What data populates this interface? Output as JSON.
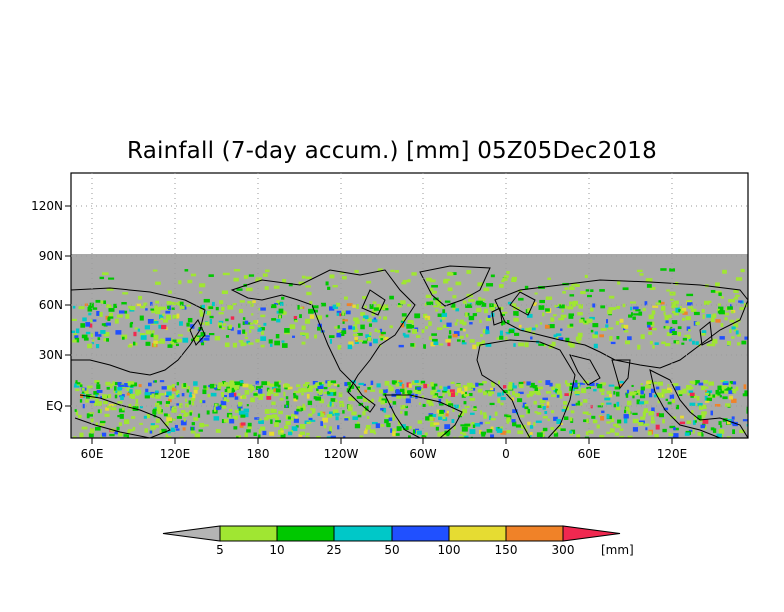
{
  "title": "Rainfall (7-day accum.) [mm] 05Z05Dec2018",
  "map": {
    "lat_labels": [
      "120N",
      "90N",
      "60N",
      "30N",
      "EQ"
    ],
    "lon_labels": [
      "60E",
      "120E",
      "180",
      "120W",
      "60W",
      "0",
      "60E",
      "120E"
    ],
    "ocean_color": "#a9a9a9",
    "no_data_color": "#a9a9a9"
  },
  "colorbar": {
    "labels": [
      "5",
      "10",
      "25",
      "50",
      "100",
      "150",
      "300"
    ],
    "unit": "[mm]",
    "colors": [
      "#b4b4b4",
      "#a0e632",
      "#00c800",
      "#00c8c8",
      "#2050ff",
      "#e6dc32",
      "#f08228",
      "#f02850"
    ]
  }
}
